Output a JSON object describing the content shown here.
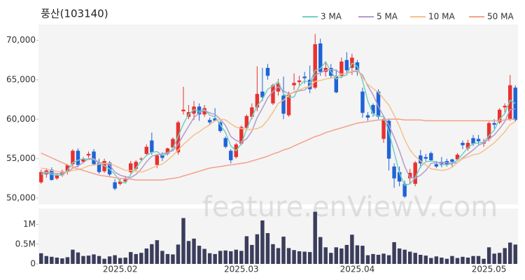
{
  "chart_data": {
    "type": "candlestick",
    "title": "풍산(103140)",
    "watermark": "feature.enViewV.com",
    "categories": [
      null,
      null,
      null,
      null,
      null,
      null,
      null,
      null,
      null,
      null,
      null,
      null,
      null,
      null,
      null,
      "2025.02",
      null,
      null,
      null,
      null,
      null,
      null,
      null,
      null,
      null,
      null,
      null,
      null,
      null,
      null,
      null,
      null,
      null,
      null,
      null,
      null,
      null,
      null,
      "2025.03",
      null,
      null,
      null,
      null,
      null,
      null,
      null,
      null,
      null,
      null,
      null,
      null,
      null,
      null,
      null,
      null,
      null,
      null,
      null,
      null,
      null,
      "2025.04",
      null,
      null,
      null,
      null,
      null,
      null,
      null,
      null,
      null,
      null,
      null,
      null,
      null,
      null,
      null,
      null,
      null,
      null,
      null,
      null,
      null,
      null,
      null,
      null,
      "2025.05",
      null,
      null,
      null,
      null,
      null
    ],
    "open": [
      52000,
      53000,
      53600,
      52500,
      52900,
      53300,
      54300,
      56000,
      54600,
      55400,
      55900,
      54500,
      53400,
      54500,
      52000,
      51800,
      52100,
      53300,
      53700,
      54900,
      55600,
      57300,
      54200,
      55500,
      55600,
      56400,
      55800,
      61000,
      60300,
      60700,
      61600,
      60600,
      59900,
      60100,
      59600,
      57600,
      56000,
      55200,
      56900,
      58900,
      60300,
      61500,
      63500,
      66500,
      62000,
      63500,
      63000,
      60500,
      64300,
      64700,
      65400,
      65000,
      64000,
      69600,
      66000,
      66500,
      65500,
      65500,
      67500,
      66500,
      67200,
      63500,
      60500,
      61800,
      63500,
      57500,
      59800,
      54000,
      53300,
      51800,
      52500,
      51800,
      55400,
      55200,
      55700,
      54300,
      54600,
      54700,
      54900,
      54900,
      57000,
      56300,
      57600,
      57500,
      56900,
      57500,
      59500,
      59600,
      61500,
      60000,
      64000
    ],
    "high": [
      53600,
      53800,
      53900,
      53100,
      53600,
      54300,
      56200,
      56300,
      55200,
      55900,
      56200,
      55000,
      55000,
      54700,
      52400,
      52400,
      52800,
      54700,
      54800,
      55200,
      56800,
      58300,
      55600,
      55800,
      56400,
      57700,
      59800,
      64100,
      61800,
      62300,
      62000,
      61800,
      60200,
      61400,
      59800,
      57800,
      56200,
      57000,
      59200,
      60600,
      62000,
      66700,
      66500,
      67000,
      64500,
      65100,
      65400,
      63500,
      65800,
      65500,
      66000,
      66800,
      70800,
      70200,
      67200,
      67000,
      66300,
      67800,
      68500,
      68300,
      67500,
      64000,
      60900,
      62000,
      63800,
      60100,
      60100,
      54400,
      54000,
      52200,
      53700,
      54700,
      56100,
      55600,
      55900,
      54700,
      55200,
      55000,
      55000,
      55700,
      57300,
      57400,
      58000,
      58000,
      57500,
      59700,
      60000,
      61400,
      62000,
      65600,
      64300
    ],
    "low": [
      51800,
      52600,
      52200,
      52300,
      52700,
      53000,
      54000,
      53900,
      54400,
      55100,
      54100,
      53100,
      53200,
      52700,
      51000,
      51600,
      51900,
      53100,
      53500,
      54600,
      55400,
      55500,
      53800,
      54700,
      55400,
      56100,
      55500,
      60600,
      60000,
      59900,
      59800,
      60300,
      59200,
      59700,
      58300,
      56300,
      54400,
      55000,
      56700,
      58700,
      60000,
      61000,
      62300,
      65000,
      61800,
      63000,
      60000,
      60300,
      63700,
      64300,
      64500,
      63300,
      63800,
      65500,
      65400,
      65200,
      63300,
      65200,
      65800,
      65600,
      65500,
      60200,
      59800,
      60300,
      60000,
      57000,
      53500,
      51300,
      51500,
      50000,
      51800,
      51500,
      53800,
      54700,
      54600,
      53800,
      53900,
      54000,
      54000,
      54700,
      56200,
      56000,
      56600,
      56800,
      56500,
      57200,
      58800,
      59400,
      60800,
      59800,
      59700
    ],
    "close": [
      53300,
      53500,
      52300,
      52900,
      53400,
      54200,
      56000,
      54200,
      54900,
      55600,
      54300,
      53300,
      54700,
      53000,
      51200,
      52100,
      52500,
      54400,
      54600,
      55000,
      56500,
      55800,
      55400,
      55100,
      56300,
      57500,
      59600,
      61200,
      60900,
      61600,
      60600,
      61400,
      59600,
      59800,
      58500,
      56500,
      54800,
      56800,
      59000,
      60400,
      61500,
      63200,
      62800,
      65500,
      64300,
      64500,
      60700,
      63100,
      64600,
      64900,
      65200,
      63800,
      69500,
      66000,
      66500,
      65500,
      63400,
      67300,
      66200,
      67800,
      66000,
      60800,
      60200,
      60700,
      60300,
      60000,
      55000,
      52500,
      52100,
      50200,
      53200,
      54500,
      54400,
      55000,
      54800,
      54000,
      54200,
      54300,
      54600,
      55500,
      56700,
      57000,
      56900,
      57200,
      57100,
      59500,
      59300,
      61200,
      61700,
      64300,
      59900
    ],
    "up_color": "#e8312f",
    "down_color": "#1f63d8",
    "ylim": [
      49200,
      72000
    ],
    "yticks": [
      {
        "value": 50000,
        "label": "50,000"
      },
      {
        "value": 55000,
        "label": "55,000"
      },
      {
        "value": 60000,
        "label": "60,000"
      },
      {
        "value": 65000,
        "label": "65,000"
      },
      {
        "value": 70000,
        "label": "70,000"
      }
    ],
    "series": [
      {
        "name": "3 MA",
        "color": "#6fd1c0",
        "values": [
          53000,
          53200,
          53000,
          52900,
          52900,
          53500,
          54500,
          54800,
          55000,
          54900,
          54900,
          54400,
          54100,
          53700,
          53000,
          52100,
          51900,
          53000,
          53800,
          54700,
          55400,
          55800,
          55900,
          55400,
          55600,
          56300,
          57800,
          59400,
          60600,
          61200,
          61000,
          61200,
          60500,
          60300,
          59300,
          58300,
          56600,
          56000,
          56900,
          58700,
          60300,
          61700,
          62500,
          63800,
          64200,
          64800,
          63200,
          62800,
          62800,
          64200,
          64900,
          64600,
          66200,
          66400,
          67300,
          66000,
          65100,
          65400,
          65600,
          67100,
          66700,
          64900,
          62300,
          60600,
          60400,
          60300,
          58400,
          55800,
          53200,
          51600,
          51800,
          52600,
          54000,
          54600,
          54700,
          54600,
          54300,
          54200,
          54400,
          54800,
          55600,
          56400,
          56900,
          57000,
          57100,
          57900,
          58600,
          60000,
          60700,
          62400,
          62000
        ]
      },
      {
        "name": "5 MA",
        "color": "#b49ac9",
        "values": [
          53200,
          53300,
          53200,
          53100,
          53100,
          53300,
          53800,
          54100,
          54500,
          55000,
          55000,
          54500,
          54400,
          54200,
          53300,
          52900,
          52700,
          52600,
          53000,
          53700,
          54600,
          55300,
          55500,
          55600,
          55800,
          56000,
          56800,
          58000,
          59100,
          60200,
          60800,
          61100,
          60800,
          60600,
          60000,
          59200,
          57800,
          57300,
          57100,
          57500,
          58500,
          60200,
          61400,
          62700,
          63500,
          64100,
          63600,
          63200,
          63400,
          63600,
          63700,
          64300,
          65600,
          65900,
          66200,
          66300,
          66200,
          65700,
          65800,
          66000,
          66100,
          65600,
          64200,
          63100,
          61600,
          60400,
          59200,
          57700,
          56000,
          54000,
          52600,
          52500,
          52900,
          53500,
          54400,
          54500,
          54500,
          54500,
          54400,
          54500,
          55100,
          55600,
          56100,
          56700,
          57000,
          57500,
          58000,
          58800,
          59700,
          61200,
          61300
        ]
      },
      {
        "name": "10 MA",
        "color": "#f5c08a",
        "values": [
          53800,
          53700,
          53500,
          53400,
          53300,
          53300,
          53500,
          53600,
          53800,
          54100,
          54200,
          54300,
          54400,
          54400,
          54100,
          53800,
          53500,
          53500,
          53400,
          53300,
          53500,
          53800,
          54100,
          54300,
          54800,
          55400,
          56100,
          56800,
          57400,
          58000,
          58400,
          58900,
          59300,
          59800,
          60000,
          59900,
          59400,
          59000,
          58800,
          58700,
          58700,
          58800,
          59100,
          59900,
          60900,
          62000,
          62400,
          63000,
          63500,
          63700,
          64000,
          64100,
          64800,
          64900,
          65100,
          65200,
          65400,
          65700,
          65800,
          66100,
          66200,
          65300,
          64400,
          63900,
          63400,
          62600,
          61800,
          60500,
          59100,
          57400,
          56100,
          55300,
          54700,
          54200,
          53700,
          53600,
          53500,
          53600,
          53900,
          54500,
          55000,
          55200,
          55500,
          55600,
          56000,
          56500,
          57000,
          57700,
          58400,
          59300,
          59700
        ]
      },
      {
        "name": "50 MA",
        "color": "#f4a08a",
        "values": [
          55700,
          55400,
          55100,
          54800,
          54500,
          54200,
          53900,
          53700,
          53500,
          53300,
          53100,
          52900,
          52800,
          52700,
          52600,
          52500,
          52400,
          52400,
          52300,
          52300,
          52300,
          52300,
          52300,
          52300,
          52400,
          52500,
          52600,
          52800,
          53000,
          53200,
          53400,
          53600,
          53800,
          53900,
          54000,
          54100,
          54200,
          54300,
          54400,
          54500,
          54700,
          54900,
          55100,
          55300,
          55600,
          55800,
          56100,
          56300,
          56600,
          56900,
          57200,
          57500,
          57800,
          58000,
          58300,
          58500,
          58700,
          58900,
          59100,
          59300,
          59500,
          59600,
          59700,
          59800,
          59900,
          59900,
          60000,
          60000,
          60000,
          59900,
          59900,
          59900,
          59900,
          59800,
          59800,
          59800,
          59800,
          59800,
          59800,
          59800,
          59800,
          59800,
          59800,
          59800,
          59800,
          59800,
          59800,
          59800,
          59900,
          60000,
          60000
        ]
      }
    ],
    "volume": {
      "color": "#3b3d5c",
      "ylim": [
        0,
        1400000
      ],
      "yticks": [
        0,
        {
          "value": 500000,
          "label": "0.5M"
        },
        {
          "value": 1000000,
          "label": "1M"
        }
      ],
      "values": [
        270000,
        200000,
        180000,
        160000,
        140000,
        170000,
        360000,
        290000,
        200000,
        210000,
        240000,
        200000,
        130000,
        190000,
        220000,
        150000,
        160000,
        300000,
        250000,
        280000,
        390000,
        500000,
        600000,
        330000,
        250000,
        240000,
        490000,
        1160000,
        580000,
        640000,
        460000,
        380000,
        270000,
        250000,
        330000,
        340000,
        320000,
        360000,
        330000,
        700000,
        480000,
        750000,
        1100000,
        780000,
        500000,
        400000,
        690000,
        400000,
        350000,
        320000,
        310000,
        300000,
        1320000,
        680000,
        420000,
        280000,
        420000,
        390000,
        480000,
        740000,
        470000,
        460000,
        220000,
        250000,
        230000,
        260000,
        220000,
        550000,
        390000,
        360000,
        310000,
        280000,
        230000,
        210000,
        150000,
        190000,
        160000,
        130000,
        200000,
        150000,
        180000,
        160000,
        200000,
        200000,
        130000,
        420000,
        260000,
        280000,
        400000,
        540000,
        490000
      ]
    }
  }
}
